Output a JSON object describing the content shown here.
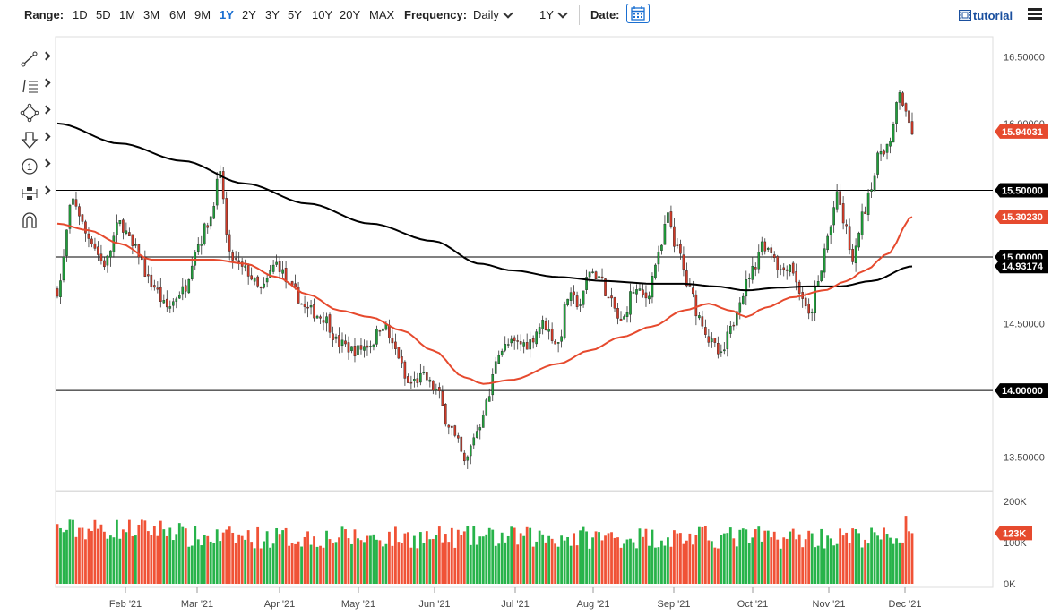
{
  "toolbar": {
    "range_label": "Range:",
    "ranges": [
      "1D",
      "5D",
      "1M",
      "3M",
      "6M",
      "9M",
      "1Y",
      "2Y",
      "3Y",
      "5Y",
      "10Y",
      "20Y",
      "MAX"
    ],
    "active_range": "1Y",
    "frequency_label": "Frequency:",
    "frequency_value": "Daily",
    "period_value": "1Y",
    "date_label": "Date:",
    "tutorial_label": "tutorial"
  },
  "tools": [
    "line-tool-icon",
    "fibonacci-tool-icon",
    "shape-tool-icon",
    "arrow-tool-icon",
    "annotation-tool-icon",
    "measure-tool-icon",
    "magnet-icon"
  ],
  "colors": {
    "up": "#1f9e3a",
    "down": "#d03a28",
    "ma_fast": "#e64a2e",
    "ma_slow": "#000000",
    "volume_up": "#27b34a",
    "volume_down": "#f05236"
  },
  "chart_data": {
    "type": "candlestick",
    "title": "",
    "price_axis": {
      "ylim": [
        13.25,
        16.65
      ],
      "ticks": [
        "16.50000",
        "16.00000",
        "15.50000",
        "15.00000",
        "14.50000",
        "14.00000",
        "13.50000"
      ]
    },
    "volume_axis": {
      "ylim": [
        0,
        200000
      ],
      "ticks": [
        "200K",
        "100K",
        "0K"
      ]
    },
    "x_axis": {
      "months": [
        "Feb '21",
        "Mar '21",
        "Apr '21",
        "May '21",
        "Jun '21",
        "Jul '21",
        "Aug '21",
        "Sep '21",
        "Oct '21",
        "Nov '21",
        "Dec '21"
      ]
    },
    "horizontal_lines": [
      15.5,
      15.0,
      14.0
    ],
    "price_tags": [
      {
        "value": 15.94031,
        "label": "15.94031",
        "color": "#e64a2e"
      },
      {
        "value": 15.5,
        "label": "15.50000",
        "color": "#000000"
      },
      {
        "value": 15.3023,
        "label": "15.30230",
        "color": "#e64a2e"
      },
      {
        "value": 15.0,
        "label": "15.00000",
        "color": "#000000"
      },
      {
        "value": 14.93174,
        "label": "14.93174",
        "color": "#000000"
      },
      {
        "value": 14.0,
        "label": "14.00000",
        "color": "#000000"
      }
    ],
    "volume_tag": {
      "value": 123000,
      "label": "123K",
      "color": "#e64a2e"
    },
    "price_keypoints": [
      [
        0,
        14.75
      ],
      [
        5,
        15.42
      ],
      [
        10,
        15.15
      ],
      [
        15,
        14.95
      ],
      [
        20,
        15.25
      ],
      [
        25,
        15.05
      ],
      [
        30,
        14.8
      ],
      [
        35,
        14.62
      ],
      [
        40,
        14.75
      ],
      [
        45,
        15.1
      ],
      [
        48,
        15.25
      ],
      [
        52,
        15.6
      ],
      [
        55,
        15.0
      ],
      [
        60,
        14.9
      ],
      [
        65,
        14.75
      ],
      [
        70,
        14.95
      ],
      [
        75,
        14.75
      ],
      [
        80,
        14.6
      ],
      [
        85,
        14.55
      ],
      [
        90,
        14.35
      ],
      [
        95,
        14.3
      ],
      [
        100,
        14.35
      ],
      [
        104,
        14.5
      ],
      [
        108,
        14.3
      ],
      [
        112,
        14.05
      ],
      [
        117,
        14.1
      ],
      [
        121,
        14.0
      ],
      [
        125,
        13.75
      ],
      [
        128,
        13.6
      ],
      [
        130,
        13.45
      ],
      [
        134,
        13.7
      ],
      [
        137,
        13.9
      ],
      [
        141,
        14.3
      ],
      [
        145,
        14.35
      ],
      [
        150,
        14.35
      ],
      [
        155,
        14.5
      ],
      [
        160,
        14.35
      ],
      [
        163,
        14.7
      ],
      [
        167,
        14.65
      ],
      [
        170,
        14.9
      ],
      [
        173,
        14.85
      ],
      [
        177,
        14.65
      ],
      [
        180,
        14.5
      ],
      [
        184,
        14.75
      ],
      [
        188,
        14.7
      ],
      [
        192,
        15.0
      ],
      [
        195,
        15.3
      ],
      [
        198,
        15.05
      ],
      [
        202,
        14.75
      ],
      [
        205,
        14.55
      ],
      [
        209,
        14.35
      ],
      [
        212,
        14.25
      ],
      [
        215,
        14.45
      ],
      [
        218,
        14.7
      ],
      [
        222,
        14.9
      ],
      [
        225,
        15.1
      ],
      [
        228,
        15.05
      ],
      [
        231,
        14.9
      ],
      [
        234,
        14.95
      ],
      [
        237,
        14.75
      ],
      [
        240,
        14.55
      ],
      [
        243,
        14.8
      ],
      [
        246,
        15.15
      ],
      [
        249,
        15.45
      ],
      [
        252,
        15.2
      ],
      [
        254,
        14.95
      ],
      [
        257,
        15.3
      ],
      [
        260,
        15.55
      ],
      [
        263,
        15.8
      ],
      [
        266,
        15.85
      ],
      [
        269,
        16.25
      ],
      [
        271,
        16.05
      ],
      [
        273,
        15.94
      ]
    ],
    "ma_fast_keypoints": [
      [
        0,
        15.25
      ],
      [
        10,
        15.2
      ],
      [
        20,
        15.1
      ],
      [
        30,
        14.98
      ],
      [
        40,
        14.98
      ],
      [
        50,
        14.98
      ],
      [
        60,
        14.95
      ],
      [
        70,
        14.85
      ],
      [
        80,
        14.72
      ],
      [
        90,
        14.6
      ],
      [
        100,
        14.55
      ],
      [
        110,
        14.45
      ],
      [
        120,
        14.3
      ],
      [
        130,
        14.1
      ],
      [
        136,
        14.05
      ],
      [
        145,
        14.08
      ],
      [
        160,
        14.2
      ],
      [
        170,
        14.3
      ],
      [
        180,
        14.4
      ],
      [
        190,
        14.48
      ],
      [
        200,
        14.6
      ],
      [
        208,
        14.65
      ],
      [
        215,
        14.6
      ],
      [
        220,
        14.55
      ],
      [
        226,
        14.62
      ],
      [
        235,
        14.7
      ],
      [
        245,
        14.75
      ],
      [
        252,
        14.82
      ],
      [
        258,
        14.9
      ],
      [
        265,
        15.02
      ],
      [
        273,
        15.3
      ]
    ],
    "ma_slow_keypoints": [
      [
        0,
        16.0
      ],
      [
        20,
        15.85
      ],
      [
        40,
        15.72
      ],
      [
        60,
        15.55
      ],
      [
        80,
        15.4
      ],
      [
        100,
        15.25
      ],
      [
        120,
        15.12
      ],
      [
        135,
        14.95
      ],
      [
        145,
        14.9
      ],
      [
        160,
        14.85
      ],
      [
        175,
        14.82
      ],
      [
        190,
        14.8
      ],
      [
        200,
        14.8
      ],
      [
        210,
        14.78
      ],
      [
        220,
        14.75
      ],
      [
        230,
        14.77
      ],
      [
        240,
        14.78
      ],
      [
        250,
        14.78
      ],
      [
        260,
        14.82
      ],
      [
        273,
        14.93
      ]
    ]
  }
}
